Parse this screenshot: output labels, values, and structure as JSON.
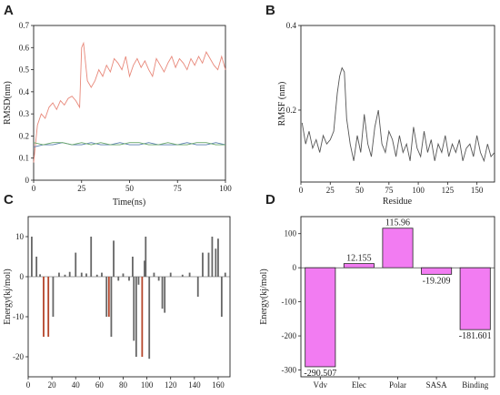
{
  "chart_data": [
    {
      "panel": "A",
      "type": "line",
      "xlabel": "Time(ns)",
      "ylabel": "RMSD(nm)",
      "xlim": [
        0,
        100
      ],
      "ylim": [
        0,
        0.7
      ],
      "xticks": [
        0,
        25,
        50,
        75,
        100
      ],
      "yticks": [
        0,
        0.1,
        0.2,
        0.3,
        0.4,
        0.5,
        0.6,
        0.7
      ],
      "series": [
        {
          "color": "#e8887a",
          "x": [
            0,
            2,
            4,
            6,
            8,
            10,
            12,
            14,
            16,
            18,
            20,
            22,
            24,
            25,
            26,
            28,
            30,
            32,
            34,
            36,
            38,
            40,
            42,
            44,
            46,
            48,
            50,
            52,
            54,
            56,
            58,
            60,
            62,
            64,
            66,
            68,
            70,
            72,
            74,
            76,
            78,
            80,
            82,
            84,
            86,
            88,
            90,
            92,
            94,
            96,
            98,
            100
          ],
          "y": [
            0.08,
            0.25,
            0.3,
            0.28,
            0.33,
            0.35,
            0.32,
            0.36,
            0.34,
            0.37,
            0.38,
            0.36,
            0.33,
            0.6,
            0.62,
            0.45,
            0.42,
            0.45,
            0.5,
            0.47,
            0.52,
            0.49,
            0.55,
            0.53,
            0.5,
            0.56,
            0.47,
            0.52,
            0.55,
            0.51,
            0.54,
            0.5,
            0.47,
            0.55,
            0.52,
            0.49,
            0.53,
            0.56,
            0.51,
            0.55,
            0.53,
            0.5,
            0.55,
            0.52,
            0.56,
            0.53,
            0.58,
            0.55,
            0.52,
            0.5,
            0.56,
            0.5
          ]
        },
        {
          "color": "#5a7fb0",
          "x": [
            0,
            5,
            10,
            15,
            20,
            25,
            30,
            35,
            40,
            45,
            50,
            55,
            60,
            65,
            70,
            75,
            80,
            85,
            90,
            95,
            100
          ],
          "y": [
            0.15,
            0.16,
            0.16,
            0.17,
            0.16,
            0.16,
            0.17,
            0.16,
            0.16,
            0.17,
            0.16,
            0.16,
            0.17,
            0.16,
            0.16,
            0.16,
            0.17,
            0.16,
            0.16,
            0.17,
            0.16
          ]
        },
        {
          "color": "#6aa86a",
          "x": [
            0,
            5,
            10,
            15,
            20,
            25,
            30,
            35,
            40,
            45,
            50,
            55,
            60,
            65,
            70,
            75,
            80,
            85,
            90,
            95,
            100
          ],
          "y": [
            0.17,
            0.16,
            0.17,
            0.17,
            0.16,
            0.17,
            0.16,
            0.17,
            0.16,
            0.16,
            0.17,
            0.17,
            0.16,
            0.16,
            0.17,
            0.16,
            0.16,
            0.17,
            0.17,
            0.16,
            0.16
          ]
        }
      ]
    },
    {
      "panel": "B",
      "type": "line",
      "xlabel": "Residue",
      "ylabel": "RMSF (nm)",
      "xlim": [
        0,
        165
      ],
      "ylim": [
        0.03,
        0.4
      ],
      "xticks": [
        0,
        25,
        50,
        75,
        100,
        125,
        150
      ],
      "yticks": [
        0.2,
        0.4
      ],
      "series": [
        {
          "color": "#555555",
          "x": [
            1,
            4,
            7,
            10,
            13,
            16,
            19,
            22,
            25,
            28,
            31,
            33,
            35,
            37,
            39,
            42,
            45,
            48,
            51,
            54,
            57,
            60,
            63,
            66,
            69,
            72,
            75,
            78,
            81,
            84,
            87,
            90,
            93,
            96,
            99,
            102,
            105,
            108,
            111,
            114,
            117,
            120,
            123,
            126,
            129,
            132,
            135,
            138,
            141,
            144,
            147,
            150,
            153,
            156,
            159,
            162,
            165
          ],
          "y": [
            0.17,
            0.12,
            0.15,
            0.11,
            0.13,
            0.1,
            0.14,
            0.12,
            0.13,
            0.15,
            0.24,
            0.28,
            0.3,
            0.29,
            0.18,
            0.12,
            0.08,
            0.14,
            0.1,
            0.19,
            0.12,
            0.09,
            0.16,
            0.2,
            0.12,
            0.1,
            0.15,
            0.13,
            0.09,
            0.14,
            0.1,
            0.12,
            0.08,
            0.16,
            0.11,
            0.09,
            0.15,
            0.1,
            0.13,
            0.08,
            0.12,
            0.1,
            0.14,
            0.09,
            0.12,
            0.1,
            0.13,
            0.08,
            0.11,
            0.12,
            0.09,
            0.14,
            0.1,
            0.08,
            0.12,
            0.09,
            0.1
          ]
        }
      ]
    },
    {
      "panel": "C",
      "type": "bar",
      "xlabel": "",
      "ylabel": "Energy(kj/mol)",
      "xlim": [
        0,
        170
      ],
      "ylim": [
        -25,
        15
      ],
      "xticks": [
        0,
        20,
        40,
        60,
        80,
        100,
        120,
        140,
        160
      ],
      "yticks": [
        -20,
        -10,
        0,
        10
      ],
      "bar_color": "#666666",
      "highlight_color": "#b5452a",
      "bars": [
        {
          "x": 3,
          "v": 10
        },
        {
          "x": 7,
          "v": 5
        },
        {
          "x": 10,
          "v": 0.6
        },
        {
          "x": 13,
          "v": -15,
          "hl": true
        },
        {
          "x": 17,
          "v": -15,
          "hl": true
        },
        {
          "x": 21,
          "v": -10
        },
        {
          "x": 26,
          "v": 1
        },
        {
          "x": 31,
          "v": 0.5
        },
        {
          "x": 35,
          "v": 1.2
        },
        {
          "x": 40,
          "v": 6
        },
        {
          "x": 45,
          "v": 1
        },
        {
          "x": 49,
          "v": 0.8
        },
        {
          "x": 53,
          "v": 10
        },
        {
          "x": 58,
          "v": 0.5
        },
        {
          "x": 62,
          "v": 1
        },
        {
          "x": 66,
          "v": -10
        },
        {
          "x": 68,
          "v": -10,
          "hl": true
        },
        {
          "x": 70,
          "v": -15
        },
        {
          "x": 72,
          "v": 9
        },
        {
          "x": 76,
          "v": -1
        },
        {
          "x": 80,
          "v": 0.8
        },
        {
          "x": 85,
          "v": -1
        },
        {
          "x": 88,
          "v": 5
        },
        {
          "x": 89,
          "v": -16
        },
        {
          "x": 91,
          "v": -20
        },
        {
          "x": 93,
          "v": -2
        },
        {
          "x": 96,
          "v": -20,
          "hl": true
        },
        {
          "x": 98,
          "v": 4
        },
        {
          "x": 99,
          "v": 10
        },
        {
          "x": 102,
          "v": -20.5
        },
        {
          "x": 106,
          "v": 1
        },
        {
          "x": 110,
          "v": -1
        },
        {
          "x": 113,
          "v": -8
        },
        {
          "x": 115,
          "v": -9
        },
        {
          "x": 120,
          "v": 1
        },
        {
          "x": 130,
          "v": 0.5
        },
        {
          "x": 136,
          "v": 1
        },
        {
          "x": 143,
          "v": -5
        },
        {
          "x": 147,
          "v": 6
        },
        {
          "x": 152,
          "v": 6
        },
        {
          "x": 155,
          "v": 10
        },
        {
          "x": 158,
          "v": 7
        },
        {
          "x": 160,
          "v": 9.5
        },
        {
          "x": 163,
          "v": -10
        },
        {
          "x": 166,
          "v": 1
        }
      ]
    },
    {
      "panel": "D",
      "type": "bar",
      "xlabel": "",
      "ylabel": "Energy(kj/mol)",
      "ylim": [
        -320,
        150
      ],
      "yticks": [
        -300,
        -200,
        -100,
        0,
        100
      ],
      "bar_color": "#f27cf2",
      "bar_edge": "#222222",
      "categories": [
        "Vdv",
        "Elec",
        "Polar",
        "SASA",
        "Binding"
      ],
      "values": [
        -290.507,
        12.155,
        115.96,
        -19.209,
        -181.601
      ],
      "value_labels": [
        "-290.507",
        "12.155",
        "115.96",
        "-19.209",
        "-181.601"
      ]
    }
  ]
}
